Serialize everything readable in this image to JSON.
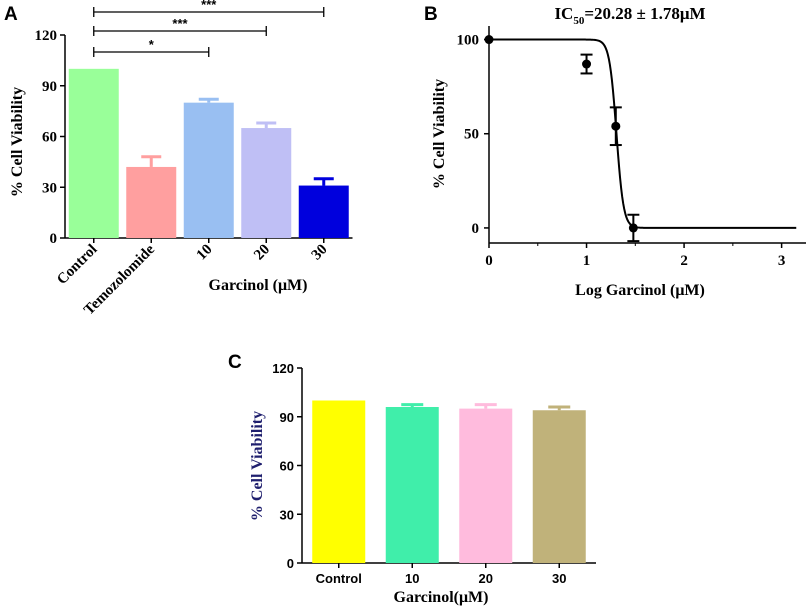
{
  "panels": {
    "a": "A",
    "b": "B",
    "c": "C"
  },
  "chart_data": [
    {
      "id": "A",
      "type": "bar",
      "ylabel": "% Cell Viability",
      "xlabel": "Garcinol (μM)",
      "categories": [
        "Control",
        "Temozolomide",
        "10",
        "20",
        "30"
      ],
      "values": [
        100,
        42,
        80,
        65,
        31
      ],
      "errors": [
        0,
        6,
        2,
        3,
        4
      ],
      "colors": [
        "#99ff99",
        "#ff9f9f",
        "#99bff2",
        "#bfbff5",
        "#0000dd"
      ],
      "ylim": [
        0,
        120
      ],
      "yticks": [
        "0",
        "30",
        "60",
        "90",
        "120"
      ],
      "significance": [
        {
          "from": 0,
          "to": 2,
          "label": "*"
        },
        {
          "from": 0,
          "to": 3,
          "label": "***"
        },
        {
          "from": 0,
          "to": 4,
          "label": "***"
        }
      ]
    },
    {
      "id": "B",
      "type": "scatter",
      "title_main": "IC",
      "title_sub": "50",
      "title_rest": "=20.28 ± 1.78μM",
      "xlabel": "Log Garcinol (μM)",
      "ylabel": "% Cell Viability",
      "xlim": [
        0,
        3.25
      ],
      "ylim": [
        -8,
        104
      ],
      "xticks": [
        "0",
        "1",
        "2",
        "3"
      ],
      "yticks": [
        "0",
        "50",
        "100"
      ],
      "points": [
        {
          "x": 0,
          "y": 100,
          "err": 0
        },
        {
          "x": 1.0,
          "y": 87,
          "err": 5
        },
        {
          "x": 1.3,
          "y": 54,
          "err": 10
        },
        {
          "x": 1.48,
          "y": 0,
          "err": 7
        }
      ],
      "curve": {
        "top": 100,
        "bottom": 0,
        "logIC50": 1.307,
        "hill": -12
      }
    },
    {
      "id": "C",
      "type": "bar",
      "ylabel": "% Cell Viability",
      "xlabel": "Garcinol(μM)",
      "categories": [
        "Control",
        "10",
        "20",
        "30"
      ],
      "values": [
        100,
        96,
        95,
        94
      ],
      "errors": [
        0,
        1.5,
        2.5,
        2
      ],
      "colors": [
        "#ffff00",
        "#40eeaa",
        "#ffbbdd",
        "#c0b27a"
      ],
      "ylim": [
        0,
        120
      ],
      "yticks": [
        "0",
        "30",
        "60",
        "90",
        "120"
      ],
      "ylabel_color": "#1f1f6e"
    }
  ]
}
